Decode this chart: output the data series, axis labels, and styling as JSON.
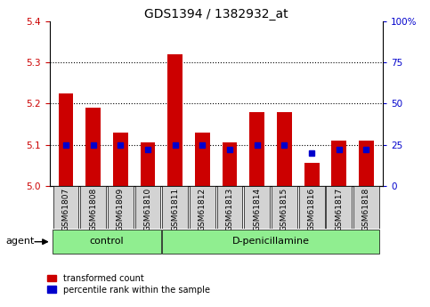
{
  "title": "GDS1394 / 1382932_at",
  "samples": [
    "GSM61807",
    "GSM61808",
    "GSM61809",
    "GSM61810",
    "GSM61811",
    "GSM61812",
    "GSM61813",
    "GSM61814",
    "GSM61815",
    "GSM61816",
    "GSM61817",
    "GSM61818"
  ],
  "red_values": [
    5.225,
    5.19,
    5.13,
    5.105,
    5.32,
    5.13,
    5.105,
    5.18,
    5.18,
    5.055,
    5.11,
    5.11
  ],
  "blue_values": [
    25,
    25,
    25,
    22,
    25,
    25,
    22,
    25,
    25,
    20,
    22,
    22
  ],
  "ylim_left": [
    5.0,
    5.4
  ],
  "ylim_right": [
    0,
    100
  ],
  "yticks_left": [
    5.0,
    5.1,
    5.2,
    5.3,
    5.4
  ],
  "yticks_right": [
    0,
    25,
    50,
    75,
    100
  ],
  "ytick_labels_right": [
    "0",
    "25",
    "50",
    "75",
    "100%"
  ],
  "grid_lines": [
    5.1,
    5.2,
    5.3
  ],
  "bar_width": 0.55,
  "bar_color": "#cc0000",
  "dot_color": "#0000cc",
  "control_indices": [
    0,
    1,
    2,
    3
  ],
  "treatment_indices": [
    4,
    5,
    6,
    7,
    8,
    9,
    10,
    11
  ],
  "control_label": "control",
  "treatment_label": "D-penicillamine",
  "agent_label": "agent",
  "group_bg": "#90ee90",
  "tick_bg": "#d3d3d3",
  "legend_red": "transformed count",
  "legend_blue": "percentile rank within the sample",
  "left_tick_color": "#cc0000",
  "right_tick_color": "#0000cc",
  "title_fontsize": 10,
  "tick_fontsize": 7.5,
  "sample_fontsize": 6.5,
  "group_fontsize": 8,
  "legend_fontsize": 7
}
